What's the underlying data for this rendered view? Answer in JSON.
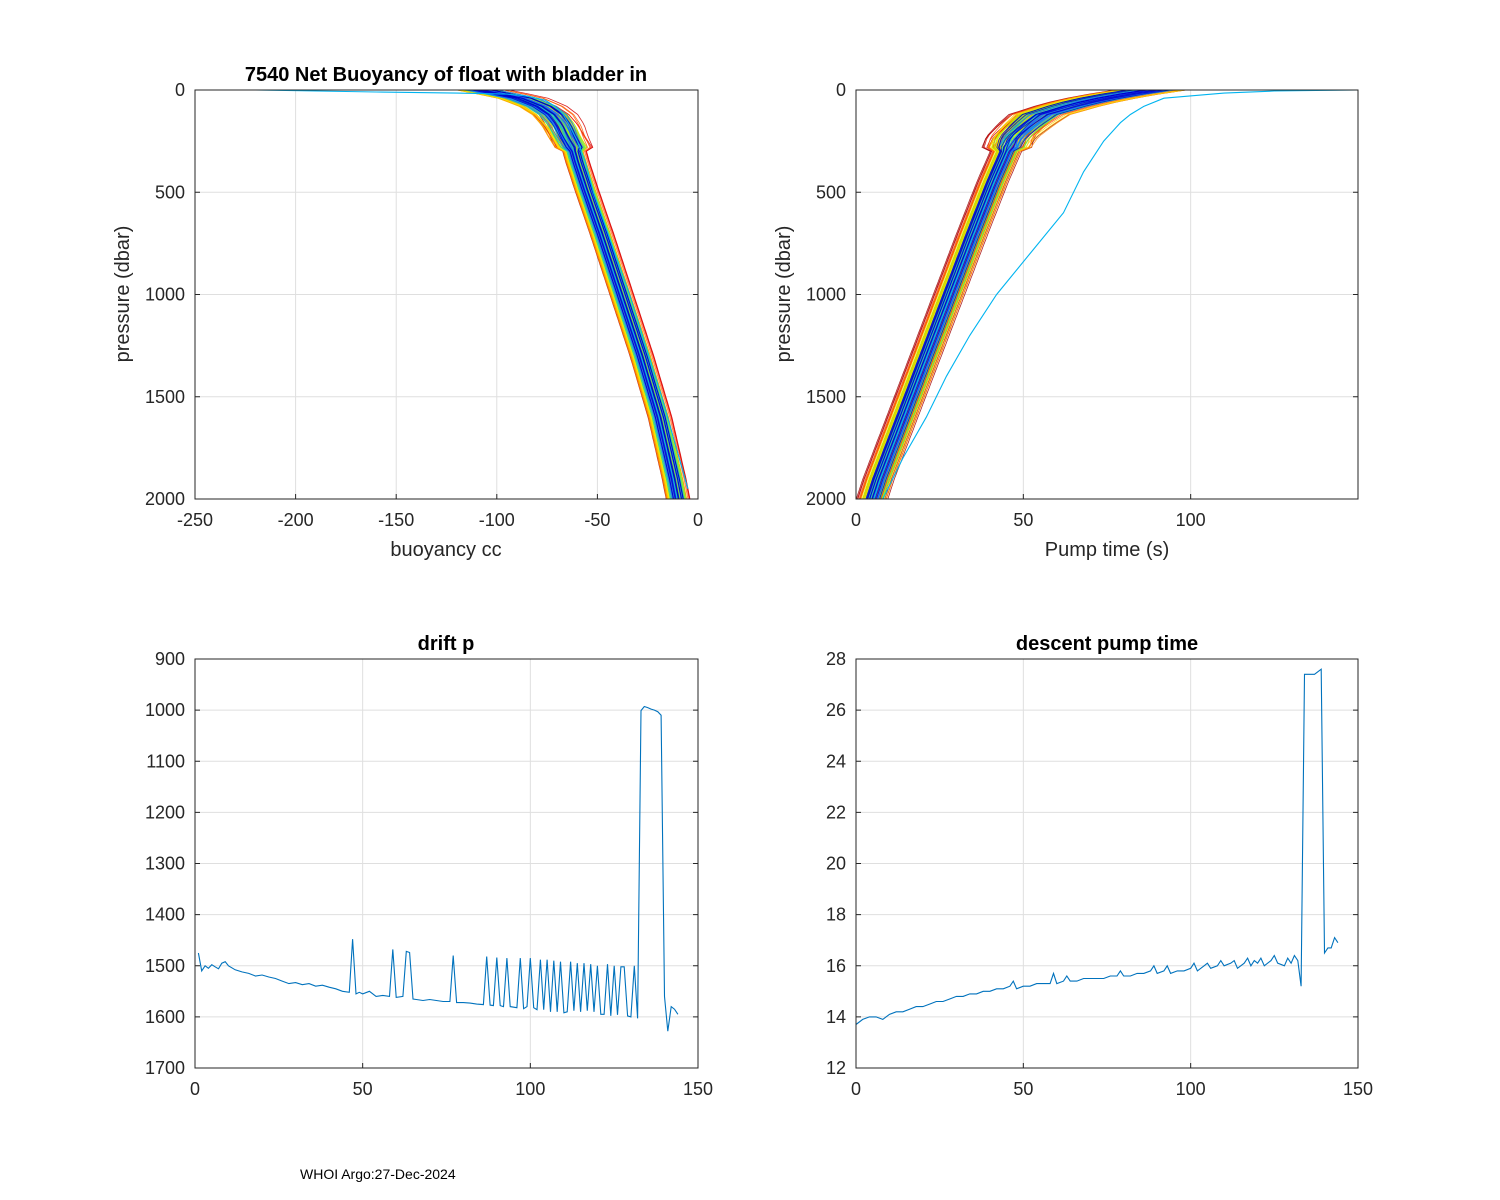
{
  "footer": "WHOI Argo:27-Dec-2024",
  "colors": {
    "axis": "#262626",
    "grid": "#dfdfdf",
    "line": "#0072bd",
    "profile_palette": [
      "#a00000",
      "#d40000",
      "#ff1a00",
      "#ff5a00",
      "#ff8c00",
      "#ffb000",
      "#ffd000",
      "#f0f000",
      "#b4f000",
      "#60e860",
      "#20d0a0",
      "#00b4f0",
      "#2060ff",
      "#0000c8"
    ]
  },
  "chart_data": [
    {
      "id": "buoyancy",
      "type": "line",
      "title": "7540 Net Buoyancy of float with bladder in",
      "xlabel": "buoyancy cc",
      "ylabel": "pressure (dbar)",
      "xlim": [
        -250,
        0
      ],
      "ylim": [
        0,
        2000
      ],
      "y_reversed": true,
      "xticks": [
        -250,
        -200,
        -150,
        -100,
        -50,
        0
      ],
      "yticks": [
        0,
        500,
        1000,
        1500,
        2000
      ],
      "profile_count": 145,
      "representative": {
        "pressure": [
          0,
          15,
          40,
          80,
          120,
          170,
          230,
          280,
          350,
          500,
          700,
          1000,
          1300,
          1600,
          1900,
          2000
        ],
        "buoyancy": [
          -108,
          -100,
          -88,
          -78,
          -72,
          -68,
          -65,
          -62,
          -60,
          -55,
          -48,
          -38,
          -28,
          -19,
          -12,
          -10
        ]
      },
      "outlier": {
        "pressure": [
          0,
          10,
          15,
          20,
          30,
          50,
          80,
          120,
          170,
          250,
          350,
          500,
          1000,
          1500,
          1950
        ],
        "buoyancy": [
          -220,
          -160,
          -120,
          -95,
          -85,
          -76,
          -71,
          -67,
          -64,
          -60,
          -56,
          -52,
          -34,
          -18,
          -5
        ]
      }
    },
    {
      "id": "pump_time",
      "type": "line",
      "title": "",
      "xlabel": "Pump time (s)",
      "ylabel": "pressure (dbar)",
      "xlim": [
        0,
        150
      ],
      "ylim": [
        0,
        2000
      ],
      "y_reversed": true,
      "xticks": [
        0,
        50,
        100
      ],
      "yticks": [
        0,
        500,
        1000,
        1500,
        2000
      ],
      "profile_count": 145,
      "representative": {
        "pressure": [
          0,
          20,
          50,
          80,
          120,
          170,
          230,
          300,
          450,
          700,
          1000,
          1300,
          1600,
          1900,
          2000
        ],
        "pump": [
          88,
          80,
          70,
          63,
          55,
          51,
          47,
          45,
          41,
          35,
          28,
          21,
          14,
          7,
          5
        ]
      },
      "outlier": {
        "pressure": [
          0,
          5,
          15,
          40,
          80,
          120,
          160,
          250,
          400,
          600,
          800,
          1000,
          1200,
          1400,
          1600,
          1800,
          2000
        ],
        "pump": [
          150,
          125,
          110,
          92,
          86,
          82,
          79,
          74,
          68,
          62,
          52,
          42,
          34,
          27,
          21,
          14,
          8
        ]
      }
    },
    {
      "id": "drift_p",
      "type": "line",
      "title": "drift p",
      "xlabel": "",
      "ylabel": "",
      "xlim": [
        0,
        150
      ],
      "ylim": [
        900,
        1700
      ],
      "y_reversed": true,
      "xticks": [
        0,
        50,
        100,
        150
      ],
      "yticks": [
        900,
        1000,
        1100,
        1200,
        1300,
        1400,
        1500,
        1600,
        1700
      ],
      "x": [
        1,
        2,
        3,
        4,
        5,
        6,
        7,
        8,
        9,
        10,
        12,
        14,
        16,
        18,
        20,
        22,
        24,
        26,
        28,
        30,
        32,
        34,
        36,
        38,
        40,
        42,
        44,
        46,
        47,
        48,
        49,
        50,
        52,
        54,
        56,
        58,
        59,
        60,
        62,
        63,
        64,
        65,
        66,
        68,
        70,
        72,
        74,
        76,
        77,
        78,
        80,
        82,
        84,
        86,
        87,
        88,
        89,
        90,
        91,
        92,
        93,
        94,
        96,
        97,
        98,
        99,
        100,
        101,
        102,
        103,
        104,
        105,
        106,
        107,
        108,
        109,
        110,
        111,
        112,
        113,
        114,
        115,
        116,
        117,
        118,
        119,
        120,
        121,
        122,
        123,
        124,
        125,
        126,
        127,
        128,
        129,
        130,
        131,
        132,
        133,
        134,
        135,
        136,
        137,
        138,
        139,
        140,
        141,
        142,
        143,
        144
      ],
      "values": [
        1475,
        1510,
        1500,
        1505,
        1498,
        1502,
        1506,
        1495,
        1492,
        1500,
        1508,
        1512,
        1515,
        1520,
        1518,
        1522,
        1525,
        1530,
        1535,
        1533,
        1537,
        1535,
        1540,
        1538,
        1542,
        1545,
        1550,
        1552,
        1448,
        1555,
        1552,
        1555,
        1550,
        1560,
        1558,
        1560,
        1468,
        1562,
        1560,
        1472,
        1474,
        1565,
        1566,
        1568,
        1566,
        1568,
        1570,
        1570,
        1480,
        1572,
        1572,
        1573,
        1575,
        1576,
        1482,
        1577,
        1578,
        1484,
        1578,
        1580,
        1485,
        1580,
        1582,
        1485,
        1584,
        1580,
        1485,
        1582,
        1586,
        1488,
        1586,
        1488,
        1590,
        1490,
        1590,
        1492,
        1592,
        1590,
        1492,
        1588,
        1495,
        1590,
        1495,
        1588,
        1497,
        1590,
        1500,
        1595,
        1595,
        1497,
        1598,
        1500,
        1596,
        1502,
        1502,
        1598,
        1600,
        1500,
        1603,
        1001,
        993,
        995,
        998,
        1000,
        1003,
        1010,
        1560,
        1628,
        1580,
        1585,
        1595
      ]
    },
    {
      "id": "descent_pump_time",
      "type": "line",
      "title": "descent pump time",
      "xlabel": "",
      "ylabel": "",
      "xlim": [
        0,
        150
      ],
      "ylim": [
        12,
        28
      ],
      "y_reversed": false,
      "xticks": [
        0,
        50,
        100,
        150
      ],
      "yticks": [
        12,
        14,
        16,
        18,
        20,
        22,
        24,
        26,
        28
      ],
      "x": [
        0,
        2,
        4,
        6,
        8,
        10,
        12,
        14,
        16,
        18,
        20,
        22,
        24,
        26,
        28,
        30,
        32,
        34,
        36,
        38,
        40,
        42,
        44,
        46,
        47,
        48,
        50,
        52,
        54,
        56,
        58,
        59,
        60,
        62,
        63,
        64,
        66,
        68,
        70,
        72,
        74,
        76,
        78,
        79,
        80,
        82,
        84,
        86,
        88,
        89,
        90,
        92,
        93,
        94,
        96,
        98,
        100,
        101,
        102,
        104,
        105,
        106,
        108,
        109,
        110,
        112,
        113,
        114,
        116,
        117,
        118,
        119,
        120,
        121,
        122,
        124,
        125,
        126,
        128,
        129,
        130,
        131,
        132,
        133,
        134,
        135,
        136,
        137,
        138,
        139,
        140,
        141,
        142,
        143,
        144
      ],
      "values": [
        13.7,
        13.9,
        14.0,
        14.0,
        13.9,
        14.1,
        14.2,
        14.2,
        14.3,
        14.4,
        14.4,
        14.5,
        14.6,
        14.6,
        14.7,
        14.8,
        14.8,
        14.9,
        14.9,
        15.0,
        15.0,
        15.1,
        15.1,
        15.2,
        15.4,
        15.1,
        15.2,
        15.2,
        15.3,
        15.3,
        15.3,
        15.7,
        15.3,
        15.4,
        15.6,
        15.4,
        15.4,
        15.5,
        15.5,
        15.5,
        15.5,
        15.6,
        15.6,
        15.8,
        15.6,
        15.6,
        15.7,
        15.7,
        15.8,
        16.0,
        15.7,
        15.8,
        16.0,
        15.7,
        15.8,
        15.8,
        15.9,
        16.1,
        15.8,
        16.0,
        16.1,
        15.9,
        16.0,
        16.2,
        16.0,
        16.1,
        16.2,
        15.9,
        16.1,
        16.3,
        16.0,
        16.2,
        16.1,
        16.3,
        16.0,
        16.2,
        16.4,
        16.1,
        16.0,
        16.3,
        16.1,
        16.4,
        16.2,
        15.2,
        27.4,
        27.4,
        27.4,
        27.4,
        27.5,
        27.6,
        16.5,
        16.7,
        16.7,
        17.1,
        16.9
      ]
    }
  ]
}
